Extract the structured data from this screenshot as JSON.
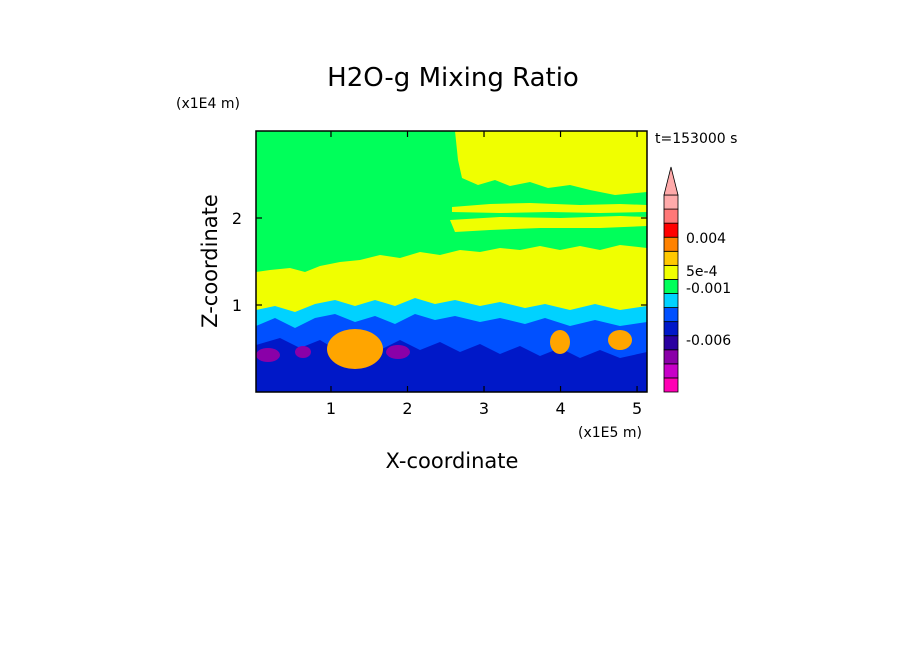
{
  "chart_data": {
    "type": "heatmap",
    "title": "H2O-g Mixing Ratio",
    "xlabel": "X-coordinate",
    "ylabel": "Z-coordinate",
    "x_scale_label": "(x1E5 m)",
    "y_scale_label": "(x1E4 m)",
    "time_label": "t=153000 s",
    "xlim": [
      0.02,
      5.13
    ],
    "ylim": [
      0,
      3.0
    ],
    "x_ticks": [
      {
        "value": 1,
        "label": "1"
      },
      {
        "value": 2,
        "label": "2"
      },
      {
        "value": 3,
        "label": "3"
      },
      {
        "value": 4,
        "label": "4"
      },
      {
        "value": 5,
        "label": "5"
      }
    ],
    "y_ticks": [
      {
        "value": 1,
        "label": "1"
      },
      {
        "value": 2,
        "label": "2"
      }
    ],
    "grid": false,
    "colorbar": {
      "placement": "right",
      "extend_top": true,
      "levels": [
        {
          "color": "#ff00b4"
        },
        {
          "color": "#c800c8"
        },
        {
          "color": "#8a00a8"
        },
        {
          "color": "#2a00a0"
        },
        {
          "color": "#0018c8"
        },
        {
          "color": "#0050ff"
        },
        {
          "color": "#00d2ff"
        },
        {
          "color": "#00ff5a"
        },
        {
          "color": "#f0ff00"
        },
        {
          "color": "#ffc800"
        },
        {
          "color": "#ff8200"
        },
        {
          "color": "#ff0000"
        },
        {
          "color": "#ff7878"
        },
        {
          "color": "#ffaaaa"
        }
      ],
      "labels": [
        {
          "text": "0.004",
          "value": 0.004
        },
        {
          "text": "5e-4",
          "value": 0.0005
        },
        {
          "text": "-0.001",
          "value": -0.001
        },
        {
          "text": "-0.006",
          "value": -0.006
        }
      ]
    },
    "colors": {
      "background_green": "#00ff5a",
      "yellow": "#f0ff00",
      "orange": "#ffa500",
      "cyan": "#00d2ff",
      "blue": "#0050ff",
      "darkblue": "#0018c8",
      "purple": "#8a00a8"
    }
  }
}
